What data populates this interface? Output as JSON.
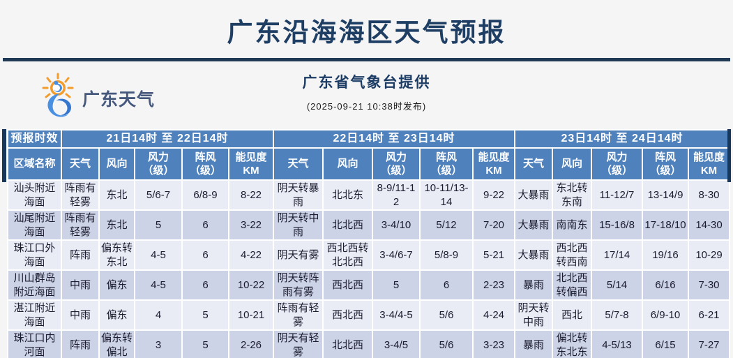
{
  "page": {
    "title": "广东沿海海区天气预报",
    "provider": "广东省气象台提供",
    "issue_time": "(2025-09-21 10:38时发布)",
    "logo_text": "广东天气",
    "logo_icon": "sun-typhoon-icon"
  },
  "colors": {
    "title_navy": "#1e3e63",
    "divider_navy": "#203a56",
    "header_blue": "#4f81bd",
    "header_side_navy": "#17375d",
    "row_light": "#e9ecf5",
    "row_dark": "#ccd3e6",
    "logo_orange": "#f39c2d",
    "logo_blue": "#4a90e2"
  },
  "table": {
    "corner_label": "预报时效",
    "region_label": "区域名称",
    "periods": [
      "21日14时 至 22日14时",
      "22日14时 至 23日14时",
      "23日14时 至 24日14时"
    ],
    "sub_headers": [
      [
        "天气"
      ],
      [
        "风向"
      ],
      [
        "风力",
        "（级）"
      ],
      [
        "阵风",
        "（级）"
      ],
      [
        "能见度",
        "KM"
      ]
    ],
    "rows": [
      {
        "region": "汕头附近海面",
        "cells": [
          "阵雨有轻雾",
          "东北",
          "5/6-7",
          "6/8-9",
          "8-22",
          "阴天转暴雨",
          "北北东",
          "8-9/11-12",
          "10-11/13-14",
          "9-22",
          "大暴雨",
          "东北转东南",
          "11-12/7",
          "13-14/9",
          "8-30"
        ]
      },
      {
        "region": "汕尾附近海面",
        "cells": [
          "阵雨有轻雾",
          "东北",
          "5",
          "6",
          "3-22",
          "阴天转中雨",
          "北北西",
          "3-4/10",
          "5/12",
          "7-20",
          "大暴雨",
          "南南东",
          "15-16/8",
          "17-18/10",
          "14-30"
        ]
      },
      {
        "region": "珠江口外海面",
        "cells": [
          "阵雨",
          "偏东转东北",
          "4-5",
          "6",
          "4-22",
          "阴天有雾",
          "西北西转北北西",
          "3-4/6-7",
          "5/8-9",
          "5-21",
          "大暴雨",
          "西北西转西南",
          "17/14",
          "19/16",
          "10-29"
        ]
      },
      {
        "region": "川山群岛附近海面",
        "cells": [
          "中雨",
          "偏东",
          "4-5",
          "6",
          "10-22",
          "阴天转阵雨有雾",
          "西北西",
          "5",
          "6",
          "2-23",
          "暴雨",
          "北北西转偏西",
          "5/14",
          "6/16",
          "7-30"
        ]
      },
      {
        "region": "湛江附近海面",
        "cells": [
          "中雨",
          "偏东",
          "4",
          "5",
          "10-21",
          "阵雨有轻雾",
          "西北西",
          "3-4/4-5",
          "5/6",
          "4-24",
          "阴天转中雨",
          "西北",
          "5/7-8",
          "6/9-10",
          "6-21"
        ]
      },
      {
        "region": "珠江口内河面",
        "cells": [
          "阵雨",
          "偏东转偏北",
          "3",
          "5",
          "2-26",
          "阴天有轻雾",
          "北北西",
          "3-4/5",
          "5/6",
          "3-23",
          "暴雨",
          "偏北转东北东",
          "4-5/13",
          "6/15",
          "7-27"
        ]
      }
    ]
  }
}
